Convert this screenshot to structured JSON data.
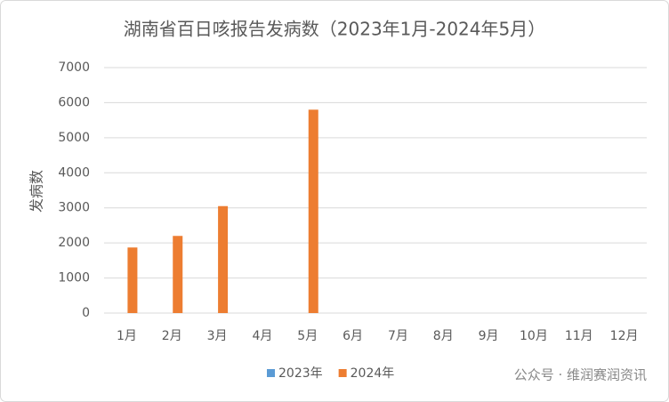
{
  "chart_data": {
    "type": "bar",
    "title": "湖南省百日咳报告发病数（2023年1月-2024年5月）",
    "y_label": "发病数",
    "categories": [
      "1月",
      "2月",
      "3月",
      "4月",
      "5月",
      "6月",
      "7月",
      "8月",
      "9月",
      "10月",
      "11月",
      "12月"
    ],
    "series": [
      {
        "name": "2023年",
        "color": "#5b9bd5",
        "values": [
          0,
          0,
          0,
          0,
          0,
          0,
          0,
          0,
          0,
          0,
          0,
          0
        ]
      },
      {
        "name": "2024年",
        "color": "#ed7d31",
        "values": [
          1870,
          2200,
          3050,
          null,
          5800,
          null,
          null,
          null,
          null,
          null,
          null,
          null
        ]
      }
    ],
    "ylim": [
      0,
      7000
    ],
    "yticks": [
      0,
      1000,
      2000,
      3000,
      4000,
      5000,
      6000,
      7000
    ],
    "grid": true,
    "legend": "bottom",
    "watermark": "公众号 · 维润赛润资讯"
  }
}
